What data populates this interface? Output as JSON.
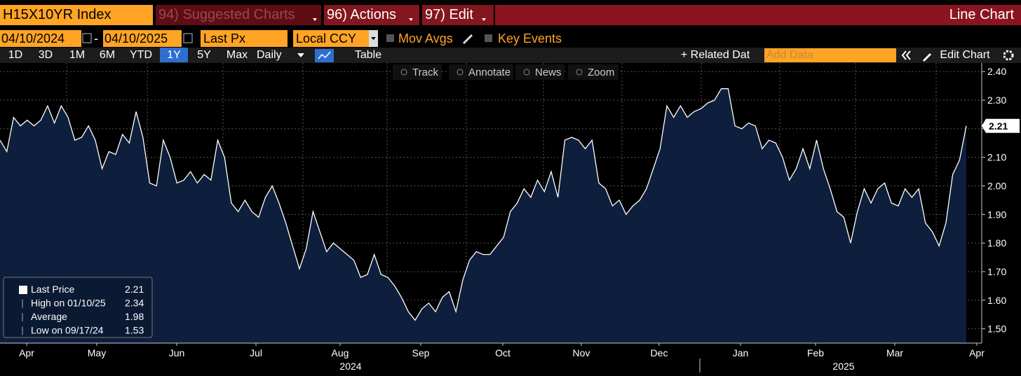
{
  "toolbar": {
    "ticker": "H15X10YR Index",
    "suggested": "94) Suggested Charts",
    "actions": "96) Actions",
    "edit": "97) Edit",
    "chart_type": "Line Chart",
    "start_date": "04/10/2024",
    "dash": "-",
    "end_date": "04/10/2025",
    "field": "Last Px",
    "currency": "Local CCY",
    "mov_avgs": "Mov Avgs",
    "key_events": "Key Events",
    "periods": [
      "1D",
      "3D",
      "1M",
      "6M",
      "YTD",
      "1Y",
      "5Y",
      "Max"
    ],
    "frequency": "Daily",
    "table": "Table",
    "related": "+ Related Dat",
    "add_data": "Add Data",
    "edit_chart": "Edit Chart"
  },
  "chart_tools": [
    "Track",
    "Annotate",
    "News",
    "Zoom"
  ],
  "chart_data": {
    "type": "line",
    "color": "#ffffff",
    "fill": "#0d1f3c",
    "grid": true,
    "values": [
      2.16,
      2.12,
      2.24,
      2.21,
      2.23,
      2.21,
      2.23,
      2.28,
      2.22,
      2.28,
      2.24,
      2.16,
      2.17,
      2.21,
      2.16,
      2.06,
      2.12,
      2.11,
      2.18,
      2.15,
      2.26,
      2.17,
      2.01,
      2.0,
      2.16,
      2.1,
      2.01,
      2.02,
      2.05,
      2.01,
      2.04,
      2.02,
      2.16,
      2.1,
      1.94,
      1.91,
      1.95,
      1.91,
      1.89,
      1.96,
      2.0,
      1.94,
      1.87,
      1.79,
      1.71,
      1.78,
      1.91,
      1.84,
      1.77,
      1.8,
      1.78,
      1.76,
      1.74,
      1.68,
      1.69,
      1.76,
      1.69,
      1.68,
      1.65,
      1.61,
      1.56,
      1.53,
      1.57,
      1.59,
      1.56,
      1.61,
      1.63,
      1.56,
      1.67,
      1.74,
      1.77,
      1.76,
      1.76,
      1.79,
      1.82,
      1.91,
      1.94,
      1.99,
      1.96,
      2.02,
      1.98,
      2.05,
      1.96,
      2.16,
      2.17,
      2.16,
      2.13,
      2.16,
      2.01,
      1.99,
      1.93,
      1.95,
      1.9,
      1.93,
      1.95,
      1.99,
      2.06,
      2.13,
      2.28,
      2.24,
      2.28,
      2.24,
      2.26,
      2.27,
      2.29,
      2.3,
      2.34,
      2.34,
      2.21,
      2.2,
      2.22,
      2.21,
      2.13,
      2.16,
      2.15,
      2.1,
      2.02,
      2.06,
      2.13,
      2.06,
      2.16,
      2.06,
      1.99,
      1.91,
      1.89,
      1.8,
      1.91,
      1.99,
      1.94,
      1.99,
      2.01,
      1.94,
      1.93,
      1.99,
      1.96,
      1.99,
      1.87,
      1.84,
      1.79,
      1.87,
      2.04,
      2.09,
      2.21
    ],
    "ylim": [
      1.45,
      2.43
    ],
    "yticks": [
      {
        "value": 1.5,
        "label": "1.50"
      },
      {
        "value": 1.6,
        "label": "1.60"
      },
      {
        "value": 1.7,
        "label": "1.70"
      },
      {
        "value": 1.8,
        "label": "1.80"
      },
      {
        "value": 1.9,
        "label": "1.90"
      },
      {
        "value": 2.0,
        "label": "2.00"
      },
      {
        "value": 2.1,
        "label": "2.10"
      },
      {
        "value": 2.2,
        "label": "2.20"
      },
      {
        "value": 2.3,
        "label": "2.30"
      },
      {
        "value": 2.4,
        "label": "2.40"
      }
    ],
    "months": [
      "Apr",
      "May",
      "Jun",
      "Jul",
      "Aug",
      "Sep",
      "Oct",
      "Nov",
      "Dec",
      "Jan",
      "Feb",
      "Mar",
      "Apr"
    ],
    "years": [
      "2024",
      "2025"
    ],
    "legend": {
      "last_label": "Last Price",
      "last": 2.21,
      "high_label": "High on 01/10/25",
      "high": 2.34,
      "avg_label": "Average",
      "avg": 1.98,
      "low_label": "Low on 09/17/24",
      "low": 1.53
    }
  }
}
